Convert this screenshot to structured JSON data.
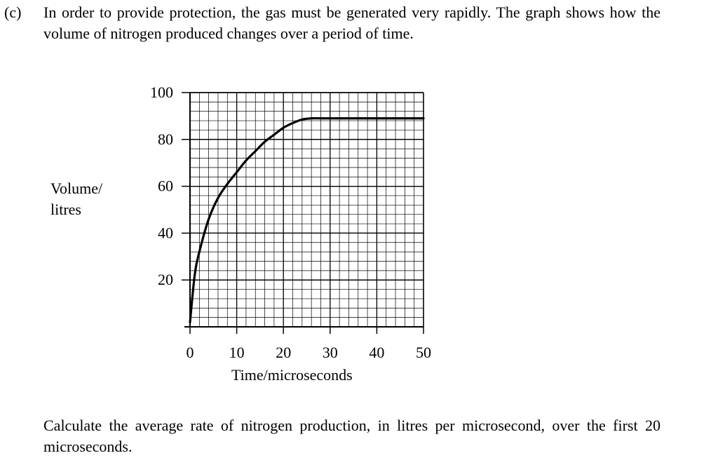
{
  "question": {
    "part_label": "(c)",
    "intro": "In order to provide protection, the gas must be generated very rapidly. The graph shows how the volume of nitrogen produced changes over a period of time.",
    "prompt": "Calculate the average rate of nitrogen production, in litres per microsecond, over the first 20 microseconds."
  },
  "chart_data": {
    "type": "line",
    "title": "",
    "xlabel": "Time/microseconds",
    "ylabel_line1": "Volume/",
    "ylabel_line2": "litres",
    "xlim": [
      0,
      50
    ],
    "ylim": [
      0,
      100
    ],
    "x_ticks": [
      0,
      10,
      20,
      30,
      40,
      50
    ],
    "y_ticks": [
      20,
      40,
      60,
      80,
      100
    ],
    "grid": true,
    "minor_grid_step_x": 2,
    "minor_grid_step_y": 4,
    "series": [
      {
        "x": [
          0,
          1,
          2,
          4,
          6,
          8,
          10,
          12,
          14,
          16,
          18,
          20,
          22,
          24,
          26,
          28,
          30,
          35,
          40,
          45,
          50
        ],
        "y": [
          2,
          22,
          32,
          46,
          55,
          61,
          66,
          71,
          75,
          79,
          82,
          85,
          87,
          88.5,
          89,
          89,
          89,
          89,
          89,
          89,
          89
        ]
      }
    ]
  }
}
